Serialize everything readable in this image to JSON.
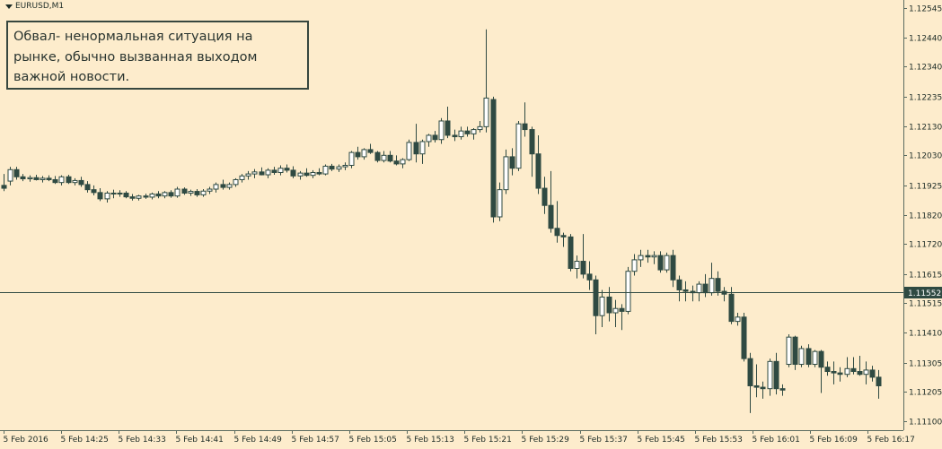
{
  "window": {
    "symbol_title": "EURUSD,M1"
  },
  "annotation": {
    "text": "Обвал- ненормальная ситуация на\nрынке, обычно вызванная выходом\nважной новости."
  },
  "colors": {
    "background": "#fdeccc",
    "bear_fill": "#2f4a42",
    "bull_fill": "#ffffff",
    "outline": "#2f4a42",
    "axis": "#5a6b60",
    "current_label_bg": "#2f4a42"
  },
  "chart_data": {
    "type": "candlestick",
    "title": "EURUSD,M1",
    "grid": false,
    "y_axis_side": "right",
    "ylim": [
      1.1107,
      1.1256
    ],
    "y_ticks": [
      "1.12545",
      "1.12440",
      "1.12340",
      "1.12235",
      "1.12130",
      "1.12030",
      "1.11925",
      "1.11820",
      "1.11720",
      "1.11615",
      "1.11515",
      "1.11410",
      "1.11305",
      "1.11205",
      "1.11100"
    ],
    "x_ticks": [
      "5 Feb 2016",
      "5 Feb 14:25",
      "5 Feb 14:33",
      "5 Feb 14:41",
      "5 Feb 14:49",
      "5 Feb 14:57",
      "5 Feb 15:05",
      "5 Feb 15:13",
      "5 Feb 15:21",
      "5 Feb 15:29",
      "5 Feb 15:37",
      "5 Feb 15:45",
      "5 Feb 15:53",
      "5 Feb 16:01",
      "5 Feb 16:09",
      "5 Feb 16:17"
    ],
    "current_price": "1.11552",
    "candles": [
      {
        "o": 1.11925,
        "h": 1.11965,
        "l": 1.11905,
        "c": 1.11915
      },
      {
        "o": 1.1194,
        "h": 1.1199,
        "l": 1.11925,
        "c": 1.1198
      },
      {
        "o": 1.1198,
        "h": 1.1199,
        "l": 1.11945,
        "c": 1.11955
      },
      {
        "o": 1.11955,
        "h": 1.11965,
        "l": 1.1194,
        "c": 1.11948
      },
      {
        "o": 1.11948,
        "h": 1.1196,
        "l": 1.11938,
        "c": 1.11952
      },
      {
        "o": 1.11952,
        "h": 1.11962,
        "l": 1.11942,
        "c": 1.11945
      },
      {
        "o": 1.11945,
        "h": 1.11958,
        "l": 1.11935,
        "c": 1.1195
      },
      {
        "o": 1.1195,
        "h": 1.1196,
        "l": 1.1194,
        "c": 1.11945
      },
      {
        "o": 1.11945,
        "h": 1.11958,
        "l": 1.1193,
        "c": 1.11935
      },
      {
        "o": 1.11935,
        "h": 1.1196,
        "l": 1.11925,
        "c": 1.11955
      },
      {
        "o": 1.11955,
        "h": 1.11962,
        "l": 1.1193,
        "c": 1.11935
      },
      {
        "o": 1.11935,
        "h": 1.1195,
        "l": 1.11925,
        "c": 1.11942
      },
      {
        "o": 1.11942,
        "h": 1.11955,
        "l": 1.1192,
        "c": 1.11928
      },
      {
        "o": 1.11928,
        "h": 1.1194,
        "l": 1.119,
        "c": 1.1191
      },
      {
        "o": 1.1191,
        "h": 1.11925,
        "l": 1.1189,
        "c": 1.119
      },
      {
        "o": 1.119,
        "h": 1.11915,
        "l": 1.1187,
        "c": 1.11878
      },
      {
        "o": 1.11878,
        "h": 1.11905,
        "l": 1.11865,
        "c": 1.11898
      },
      {
        "o": 1.11898,
        "h": 1.1191,
        "l": 1.1188,
        "c": 1.11895
      },
      {
        "o": 1.11895,
        "h": 1.11908,
        "l": 1.11885,
        "c": 1.11898
      },
      {
        "o": 1.11898,
        "h": 1.11905,
        "l": 1.1188,
        "c": 1.11885
      },
      {
        "o": 1.11885,
        "h": 1.11895,
        "l": 1.11872,
        "c": 1.1188
      },
      {
        "o": 1.1188,
        "h": 1.11892,
        "l": 1.11872,
        "c": 1.11888
      },
      {
        "o": 1.11888,
        "h": 1.11896,
        "l": 1.11878,
        "c": 1.11884
      },
      {
        "o": 1.11884,
        "h": 1.119,
        "l": 1.11876,
        "c": 1.11895
      },
      {
        "o": 1.11895,
        "h": 1.11905,
        "l": 1.1188,
        "c": 1.11888
      },
      {
        "o": 1.11888,
        "h": 1.11905,
        "l": 1.1188,
        "c": 1.119
      },
      {
        "o": 1.119,
        "h": 1.11908,
        "l": 1.11882,
        "c": 1.11888
      },
      {
        "o": 1.11888,
        "h": 1.1192,
        "l": 1.11882,
        "c": 1.11912
      },
      {
        "o": 1.11912,
        "h": 1.11918,
        "l": 1.11892,
        "c": 1.11898
      },
      {
        "o": 1.11898,
        "h": 1.1191,
        "l": 1.11888,
        "c": 1.11904
      },
      {
        "o": 1.11904,
        "h": 1.11912,
        "l": 1.11885,
        "c": 1.11892
      },
      {
        "o": 1.11892,
        "h": 1.11912,
        "l": 1.11885,
        "c": 1.11905
      },
      {
        "o": 1.11905,
        "h": 1.1192,
        "l": 1.11895,
        "c": 1.11912
      },
      {
        "o": 1.11912,
        "h": 1.11935,
        "l": 1.119,
        "c": 1.11928
      },
      {
        "o": 1.11928,
        "h": 1.11945,
        "l": 1.1191,
        "c": 1.11918
      },
      {
        "o": 1.11918,
        "h": 1.11935,
        "l": 1.1191,
        "c": 1.11928
      },
      {
        "o": 1.11928,
        "h": 1.1195,
        "l": 1.1192,
        "c": 1.11945
      },
      {
        "o": 1.11945,
        "h": 1.11965,
        "l": 1.11935,
        "c": 1.11958
      },
      {
        "o": 1.11958,
        "h": 1.11975,
        "l": 1.11945,
        "c": 1.11965
      },
      {
        "o": 1.11965,
        "h": 1.11982,
        "l": 1.1195,
        "c": 1.11972
      },
      {
        "o": 1.11972,
        "h": 1.11988,
        "l": 1.1196,
        "c": 1.11962
      },
      {
        "o": 1.11962,
        "h": 1.11985,
        "l": 1.1195,
        "c": 1.11978
      },
      {
        "o": 1.11978,
        "h": 1.1199,
        "l": 1.11962,
        "c": 1.1197
      },
      {
        "o": 1.1197,
        "h": 1.11995,
        "l": 1.1196,
        "c": 1.11985
      },
      {
        "o": 1.11985,
        "h": 1.11998,
        "l": 1.1197,
        "c": 1.11978
      },
      {
        "o": 1.11978,
        "h": 1.11992,
        "l": 1.1195,
        "c": 1.11958
      },
      {
        "o": 1.11958,
        "h": 1.11975,
        "l": 1.11945,
        "c": 1.11968
      },
      {
        "o": 1.11968,
        "h": 1.11985,
        "l": 1.11955,
        "c": 1.1196
      },
      {
        "o": 1.1196,
        "h": 1.11978,
        "l": 1.1195,
        "c": 1.1197
      },
      {
        "o": 1.1197,
        "h": 1.11985,
        "l": 1.1196,
        "c": 1.11965
      },
      {
        "o": 1.11965,
        "h": 1.11998,
        "l": 1.1196,
        "c": 1.11992
      },
      {
        "o": 1.11992,
        "h": 1.12,
        "l": 1.11975,
        "c": 1.11982
      },
      {
        "o": 1.11982,
        "h": 1.11998,
        "l": 1.11972,
        "c": 1.1199
      },
      {
        "o": 1.1199,
        "h": 1.12005,
        "l": 1.11978,
        "c": 1.11995
      },
      {
        "o": 1.11995,
        "h": 1.12045,
        "l": 1.11985,
        "c": 1.1204
      },
      {
        "o": 1.1204,
        "h": 1.1206,
        "l": 1.12015,
        "c": 1.12025
      },
      {
        "o": 1.12025,
        "h": 1.12055,
        "l": 1.12015,
        "c": 1.1205
      },
      {
        "o": 1.1205,
        "h": 1.1207,
        "l": 1.12035,
        "c": 1.1204
      },
      {
        "o": 1.1204,
        "h": 1.12045,
        "l": 1.12005,
        "c": 1.12012
      },
      {
        "o": 1.12012,
        "h": 1.12045,
        "l": 1.12005,
        "c": 1.1203
      },
      {
        "o": 1.1203,
        "h": 1.12045,
        "l": 1.12005,
        "c": 1.1201
      },
      {
        "o": 1.1201,
        "h": 1.1203,
        "l": 1.11995,
        "c": 1.12
      },
      {
        "o": 1.12,
        "h": 1.1202,
        "l": 1.11985,
        "c": 1.12015
      },
      {
        "o": 1.12015,
        "h": 1.12085,
        "l": 1.1201,
        "c": 1.12075
      },
      {
        "o": 1.12075,
        "h": 1.1214,
        "l": 1.12005,
        "c": 1.12035
      },
      {
        "o": 1.12035,
        "h": 1.12085,
        "l": 1.12,
        "c": 1.12078
      },
      {
        "o": 1.12078,
        "h": 1.12105,
        "l": 1.1206,
        "c": 1.121
      },
      {
        "o": 1.121,
        "h": 1.12115,
        "l": 1.12075,
        "c": 1.12085
      },
      {
        "o": 1.12085,
        "h": 1.1216,
        "l": 1.1207,
        "c": 1.1215
      },
      {
        "o": 1.1215,
        "h": 1.122,
        "l": 1.1209,
        "c": 1.121
      },
      {
        "o": 1.121,
        "h": 1.1212,
        "l": 1.1208,
        "c": 1.12095
      },
      {
        "o": 1.12095,
        "h": 1.1213,
        "l": 1.12085,
        "c": 1.12115
      },
      {
        "o": 1.12115,
        "h": 1.1213,
        "l": 1.12095,
        "c": 1.12105
      },
      {
        "o": 1.12105,
        "h": 1.12125,
        "l": 1.12085,
        "c": 1.1212
      },
      {
        "o": 1.1212,
        "h": 1.1215,
        "l": 1.1211,
        "c": 1.1213
      },
      {
        "o": 1.1213,
        "h": 1.1247,
        "l": 1.1211,
        "c": 1.1223
      },
      {
        "o": 1.12225,
        "h": 1.12235,
        "l": 1.11795,
        "c": 1.11815
      },
      {
        "o": 1.11815,
        "h": 1.11935,
        "l": 1.118,
        "c": 1.1191
      },
      {
        "o": 1.1191,
        "h": 1.1205,
        "l": 1.11895,
        "c": 1.12025
      },
      {
        "o": 1.12025,
        "h": 1.12055,
        "l": 1.1196,
        "c": 1.11985
      },
      {
        "o": 1.11985,
        "h": 1.1215,
        "l": 1.11975,
        "c": 1.1214
      },
      {
        "o": 1.1214,
        "h": 1.12215,
        "l": 1.12095,
        "c": 1.1212
      },
      {
        "o": 1.1212,
        "h": 1.1213,
        "l": 1.11955,
        "c": 1.12035
      },
      {
        "o": 1.12035,
        "h": 1.121,
        "l": 1.11895,
        "c": 1.11915
      },
      {
        "o": 1.11915,
        "h": 1.11955,
        "l": 1.11825,
        "c": 1.11855
      },
      {
        "o": 1.11855,
        "h": 1.11975,
        "l": 1.1176,
        "c": 1.11775
      },
      {
        "o": 1.11775,
        "h": 1.1187,
        "l": 1.11725,
        "c": 1.1175
      },
      {
        "o": 1.1175,
        "h": 1.1176,
        "l": 1.1171,
        "c": 1.11745
      },
      {
        "o": 1.11745,
        "h": 1.11755,
        "l": 1.11625,
        "c": 1.11635
      },
      {
        "o": 1.11635,
        "h": 1.1168,
        "l": 1.116,
        "c": 1.1166
      },
      {
        "o": 1.1166,
        "h": 1.11755,
        "l": 1.116,
        "c": 1.11615
      },
      {
        "o": 1.11615,
        "h": 1.1166,
        "l": 1.1156,
        "c": 1.11595
      },
      {
        "o": 1.11595,
        "h": 1.1161,
        "l": 1.11405,
        "c": 1.1147
      },
      {
        "o": 1.1147,
        "h": 1.1156,
        "l": 1.1143,
        "c": 1.11535
      },
      {
        "o": 1.11535,
        "h": 1.1157,
        "l": 1.1145,
        "c": 1.1148
      },
      {
        "o": 1.1148,
        "h": 1.11525,
        "l": 1.1143,
        "c": 1.11495
      },
      {
        "o": 1.11495,
        "h": 1.1151,
        "l": 1.1142,
        "c": 1.11485
      },
      {
        "o": 1.11485,
        "h": 1.1164,
        "l": 1.11475,
        "c": 1.11625
      },
      {
        "o": 1.11625,
        "h": 1.11685,
        "l": 1.1161,
        "c": 1.11665
      },
      {
        "o": 1.11665,
        "h": 1.117,
        "l": 1.1164,
        "c": 1.1168
      },
      {
        "o": 1.1168,
        "h": 1.117,
        "l": 1.11655,
        "c": 1.11675
      },
      {
        "o": 1.11675,
        "h": 1.11695,
        "l": 1.1165,
        "c": 1.1168
      },
      {
        "o": 1.1168,
        "h": 1.11695,
        "l": 1.1162,
        "c": 1.1163
      },
      {
        "o": 1.1163,
        "h": 1.1169,
        "l": 1.1162,
        "c": 1.1168
      },
      {
        "o": 1.1168,
        "h": 1.117,
        "l": 1.1157,
        "c": 1.11595
      },
      {
        "o": 1.11595,
        "h": 1.1161,
        "l": 1.1152,
        "c": 1.1156
      },
      {
        "o": 1.1156,
        "h": 1.1159,
        "l": 1.1152,
        "c": 1.11555
      },
      {
        "o": 1.11555,
        "h": 1.11575,
        "l": 1.1152,
        "c": 1.1155
      },
      {
        "o": 1.1155,
        "h": 1.1159,
        "l": 1.1152,
        "c": 1.1158
      },
      {
        "o": 1.1158,
        "h": 1.11615,
        "l": 1.11535,
        "c": 1.1155
      },
      {
        "o": 1.1155,
        "h": 1.11655,
        "l": 1.1154,
        "c": 1.116
      },
      {
        "o": 1.116,
        "h": 1.11625,
        "l": 1.1154,
        "c": 1.11555
      },
      {
        "o": 1.11555,
        "h": 1.1157,
        "l": 1.1152,
        "c": 1.11545
      },
      {
        "o": 1.11545,
        "h": 1.1157,
        "l": 1.1144,
        "c": 1.1145
      },
      {
        "o": 1.1145,
        "h": 1.1148,
        "l": 1.11435,
        "c": 1.11465
      },
      {
        "o": 1.11465,
        "h": 1.1148,
        "l": 1.1131,
        "c": 1.1132
      },
      {
        "o": 1.1132,
        "h": 1.1134,
        "l": 1.1113,
        "c": 1.11225
      },
      {
        "o": 1.11225,
        "h": 1.113,
        "l": 1.11185,
        "c": 1.1122
      },
      {
        "o": 1.1122,
        "h": 1.1124,
        "l": 1.1118,
        "c": 1.11215
      },
      {
        "o": 1.11215,
        "h": 1.1132,
        "l": 1.1119,
        "c": 1.1131
      },
      {
        "o": 1.1131,
        "h": 1.1134,
        "l": 1.11195,
        "c": 1.11215
      },
      {
        "o": 1.11215,
        "h": 1.1123,
        "l": 1.1119,
        "c": 1.1121
      },
      {
        "o": 1.113,
        "h": 1.11405,
        "l": 1.1129,
        "c": 1.11395
      },
      {
        "o": 1.11395,
        "h": 1.114,
        "l": 1.1128,
        "c": 1.113
      },
      {
        "o": 1.113,
        "h": 1.11365,
        "l": 1.1129,
        "c": 1.11355
      },
      {
        "o": 1.11355,
        "h": 1.1137,
        "l": 1.1129,
        "c": 1.113
      },
      {
        "o": 1.113,
        "h": 1.1135,
        "l": 1.1129,
        "c": 1.11345
      },
      {
        "o": 1.11345,
        "h": 1.1135,
        "l": 1.112,
        "c": 1.1129
      },
      {
        "o": 1.1129,
        "h": 1.1131,
        "l": 1.1126,
        "c": 1.11275
      },
      {
        "o": 1.11275,
        "h": 1.1131,
        "l": 1.1123,
        "c": 1.1127
      },
      {
        "o": 1.1127,
        "h": 1.1129,
        "l": 1.1124,
        "c": 1.11265
      },
      {
        "o": 1.11265,
        "h": 1.11325,
        "l": 1.11255,
        "c": 1.11285
      },
      {
        "o": 1.11285,
        "h": 1.11325,
        "l": 1.11265,
        "c": 1.11275
      },
      {
        "o": 1.11275,
        "h": 1.1133,
        "l": 1.1126,
        "c": 1.11265
      },
      {
        "o": 1.11265,
        "h": 1.1131,
        "l": 1.1123,
        "c": 1.1128
      },
      {
        "o": 1.1128,
        "h": 1.11295,
        "l": 1.1124,
        "c": 1.11255
      },
      {
        "o": 1.11255,
        "h": 1.1128,
        "l": 1.1118,
        "c": 1.11225
      }
    ]
  }
}
